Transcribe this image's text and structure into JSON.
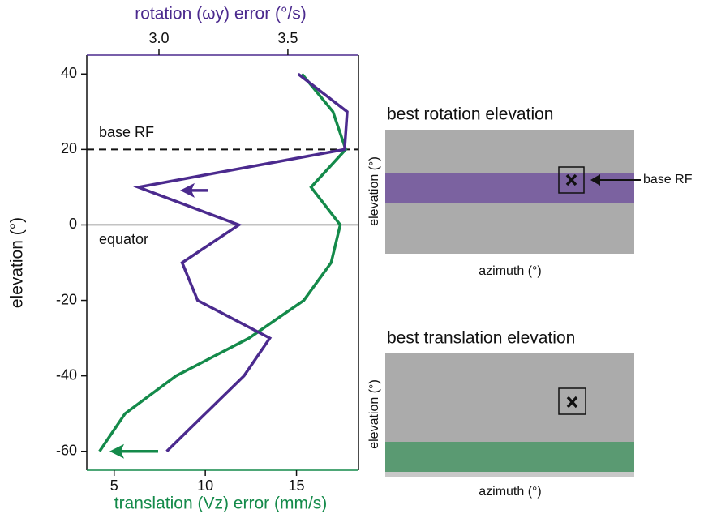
{
  "chart_data": {
    "type": "line",
    "xlabel": "translation (Vz) error (mm/s)",
    "x2label": "rotation (ωy) error (°/s)",
    "ylabel": "elevation (°)",
    "y": [
      40,
      30,
      20,
      10,
      0,
      -10,
      -20,
      -30,
      -40,
      -50,
      -60
    ],
    "series": [
      {
        "name": "translation",
        "color": "#148a4a",
        "axis": "x",
        "values": [
          15.3,
          17.0,
          17.7,
          15.8,
          17.4,
          16.9,
          15.4,
          12.4,
          8.4,
          5.6,
          4.2
        ]
      },
      {
        "name": "rotation",
        "color": "#4b2a8e",
        "axis": "x2",
        "values": [
          3.54,
          3.73,
          3.72,
          2.92,
          3.31,
          3.09,
          3.15,
          3.43,
          3.33,
          3.18,
          3.03
        ]
      }
    ],
    "xlim": [
      3.5,
      18.4
    ],
    "xticks": [
      5,
      10,
      15
    ],
    "x2lim": [
      2.72,
      3.774
    ],
    "x2ticks": [
      {
        "value": 3.0,
        "label": "3.0"
      },
      {
        "value": 3.5,
        "label": "3.5"
      }
    ],
    "ylim": [
      -65,
      45
    ],
    "yticks": [
      40,
      20,
      0,
      -20,
      -40,
      -60
    ],
    "annotations": [
      {
        "text": "base RF",
        "y": 20,
        "style": "dashed"
      },
      {
        "text": "equator",
        "y": 0,
        "style": "solid"
      }
    ]
  },
  "insets": [
    {
      "title": "best rotation elevation",
      "ylabel": "elevation (°)",
      "xlabel": "azimuth (°)",
      "marker_label": "base RF"
    },
    {
      "title": "best translation elevation",
      "ylabel": "elevation (°)",
      "xlabel": "azimuth (°)"
    }
  ]
}
